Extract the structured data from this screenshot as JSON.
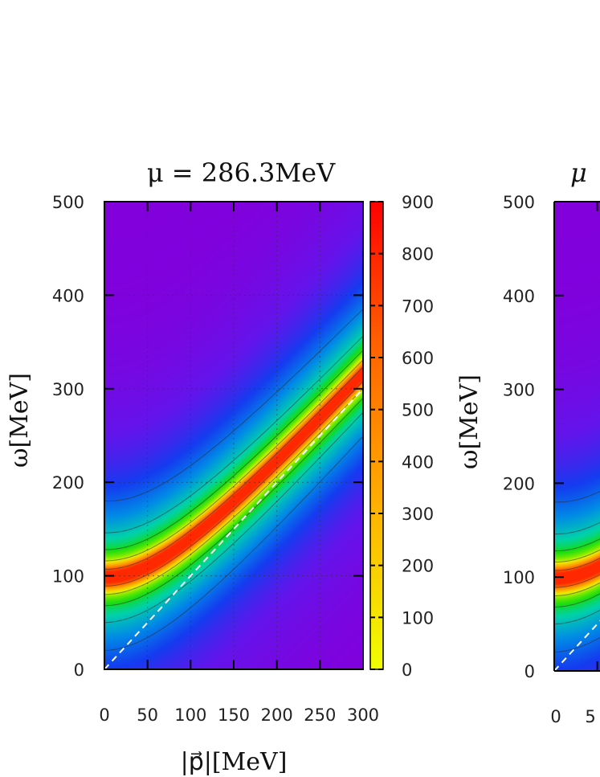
{
  "chart_data": [
    {
      "type": "heatmap",
      "title": "μ = 286.3MeV",
      "xlabel": "|p⃗|[MeV]",
      "ylabel": "ω[MeV]",
      "xlim": [
        0,
        300
      ],
      "ylim": [
        0,
        500
      ],
      "x_ticks": [
        "0",
        "50",
        "100",
        "150",
        "200",
        "250",
        "300"
      ],
      "x_tick_values": [
        0,
        50,
        100,
        150,
        200,
        250,
        300
      ],
      "y_ticks": [
        "0",
        "100",
        "200",
        "300",
        "400",
        "500"
      ],
      "y_tick_values": [
        0,
        100,
        200,
        300,
        400,
        500
      ],
      "grid": true,
      "colorbar": {
        "range": [
          0,
          900
        ],
        "ticks": [
          "0",
          "100",
          "200",
          "300",
          "400",
          "500",
          "600",
          "700",
          "800",
          "900"
        ],
        "tick_values": [
          0,
          100,
          200,
          300,
          400,
          500,
          600,
          700,
          800,
          900
        ],
        "colors": [
          "#f0ff00",
          "#ff9a00",
          "#ff0000"
        ]
      },
      "ridge": {
        "mass": 98,
        "peak_value": 900
      },
      "light_cone": {
        "line": "dashed",
        "color": "#ffffff",
        "points": [
          [
            0,
            0
          ],
          [
            300,
            300
          ]
        ]
      }
    },
    {
      "type": "heatmap",
      "title_visible": "μ",
      "ylabel": "ω[MeV]",
      "x_ticks_visible": [
        "0",
        "5"
      ],
      "y_ticks": [
        "0",
        "100",
        "200",
        "300",
        "400",
        "500"
      ],
      "y_tick_values": [
        0,
        100,
        200,
        300,
        400,
        500
      ],
      "ylim": [
        0,
        500
      ],
      "ridge": {
        "mass": 98
      },
      "partially_cropped": true
    }
  ]
}
